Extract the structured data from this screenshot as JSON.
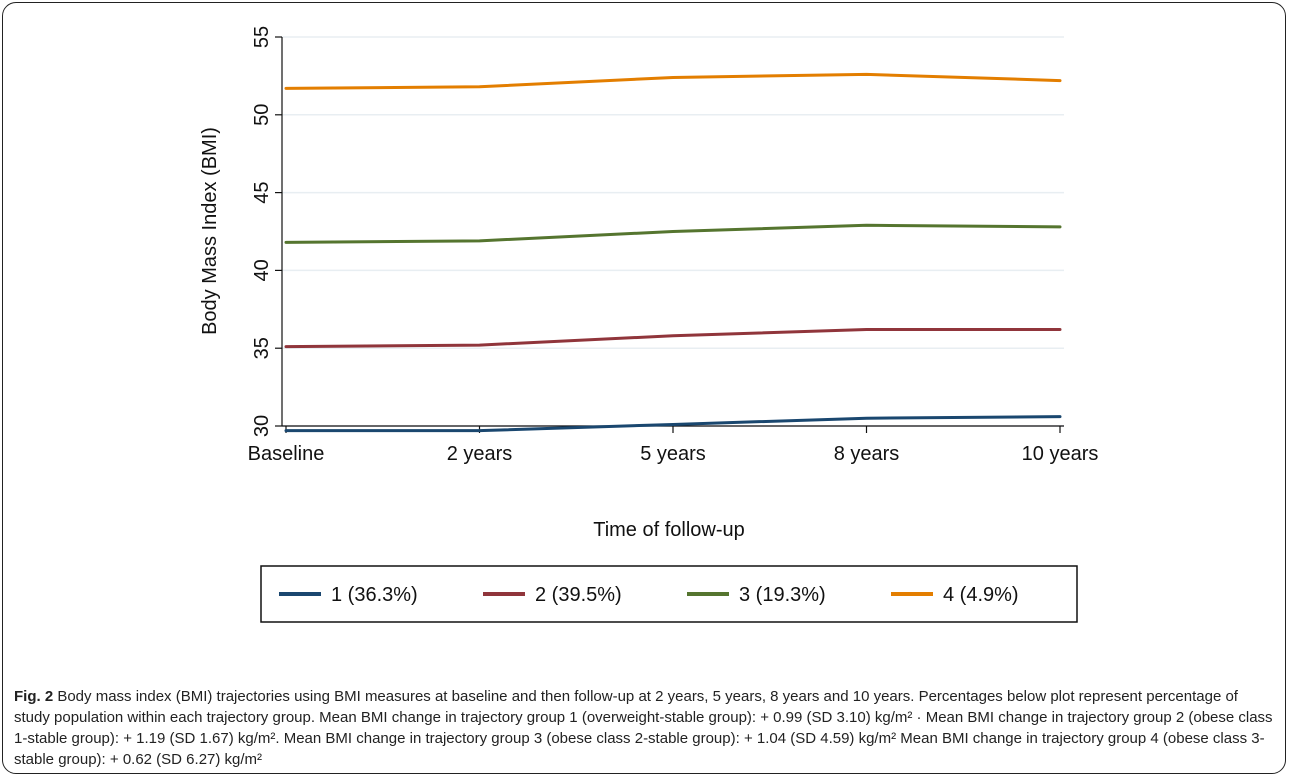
{
  "chart_data": {
    "type": "line",
    "ylabel": "Body Mass Index (BMI)",
    "xlabel": "Time of follow-up",
    "categories": [
      "Baseline",
      "2 years",
      "5 years",
      "8 years",
      "10 years"
    ],
    "ylim": [
      30,
      55
    ],
    "yticks": [
      "30",
      "35",
      "40",
      "45",
      "50",
      "55"
    ],
    "grid": true,
    "legend_position": "bottom",
    "series": [
      {
        "name": "1 (36.3%)",
        "color": "#1a476f",
        "values": [
          29.7,
          29.7,
          30.1,
          30.5,
          30.6
        ]
      },
      {
        "name": "2 (39.5%)",
        "color": "#90353b",
        "values": [
          35.1,
          35.2,
          35.8,
          36.2,
          36.2
        ]
      },
      {
        "name": "3 (19.3%)",
        "color": "#55752f",
        "values": [
          41.8,
          41.9,
          42.5,
          42.9,
          42.8
        ]
      },
      {
        "name": "4 (4.9%)",
        "color": "#e37e00",
        "values": [
          51.7,
          51.8,
          52.4,
          52.6,
          52.2
        ]
      }
    ]
  },
  "caption": {
    "label": "Fig. 2",
    "text": " Body mass index (BMI) trajectories using BMI measures at baseline and then follow-up at 2 years, 5 years, 8 years and 10 years. Percentages below plot represent percentage of study population within each trajectory group. Mean BMI change in trajectory group 1 (overweight-stable group): + 0.99 (SD 3.10) kg/m² · Mean BMI change in trajectory group 2 (obese class 1-stable group): + 1.19 (SD 1.67) kg/m². Mean BMI change in trajectory group 3 (obese class 2-stable group): + 1.04 (SD 4.59) kg/m² Mean BMI change in trajectory group 4 (obese class 3-stable group): + 0.62 (SD 6.27) kg/m²"
  }
}
